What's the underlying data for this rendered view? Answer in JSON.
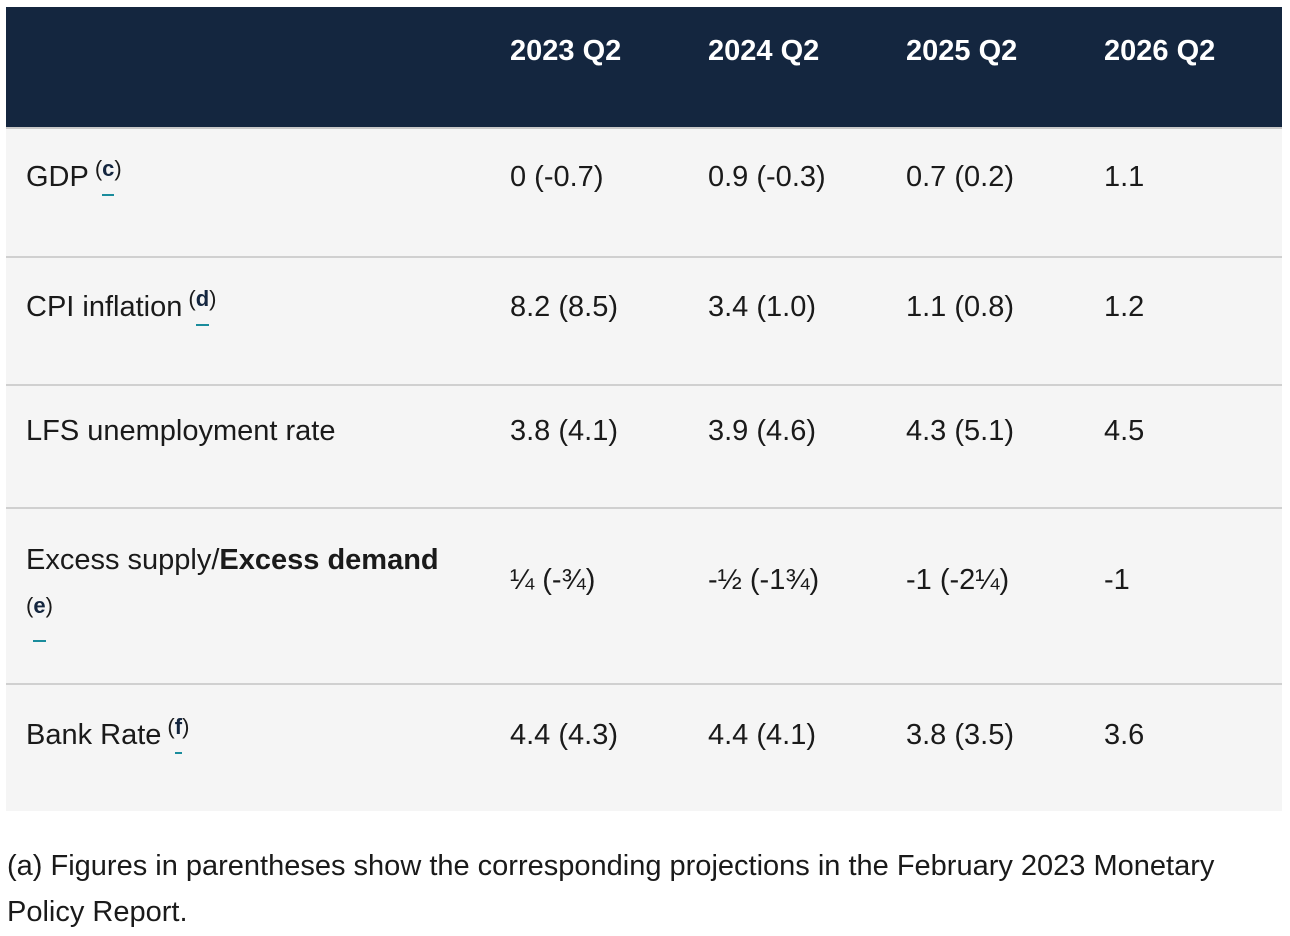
{
  "table": {
    "headers": [
      "",
      "2023 Q2",
      "2024 Q2",
      "2025 Q2",
      "2026 Q2"
    ],
    "rows": [
      {
        "label": "GDP",
        "footnote": "c",
        "values": [
          "0 (-0.7)",
          "0.9 (-0.3)",
          "0.7 (0.2)",
          "1.1"
        ]
      },
      {
        "label": "CPI inflation",
        "footnote": "d",
        "values": [
          "8.2 (8.5)",
          "3.4 (1.0)",
          "1.1 (0.8)",
          "1.2"
        ]
      },
      {
        "label": "LFS unemployment rate",
        "values": [
          "3.8 (4.1)",
          "3.9 (4.6)",
          "4.3 (5.1)",
          "4.5"
        ]
      },
      {
        "label_plain": "Excess supply/",
        "label_bold": "Excess demand",
        "footnote": "e",
        "values": [
          "¼ (-¾)",
          "-½ (-1¾)",
          "-1 (-2¼)",
          "-1"
        ]
      },
      {
        "label": "Bank Rate",
        "footnote": "f",
        "values": [
          "4.4 (4.3)",
          "4.4 (4.1)",
          "3.8 (3.5)",
          "3.6"
        ]
      }
    ]
  },
  "note": "(a) Figures in parentheses show the corresponding projections in the February 2023 Monetary Policy Report."
}
